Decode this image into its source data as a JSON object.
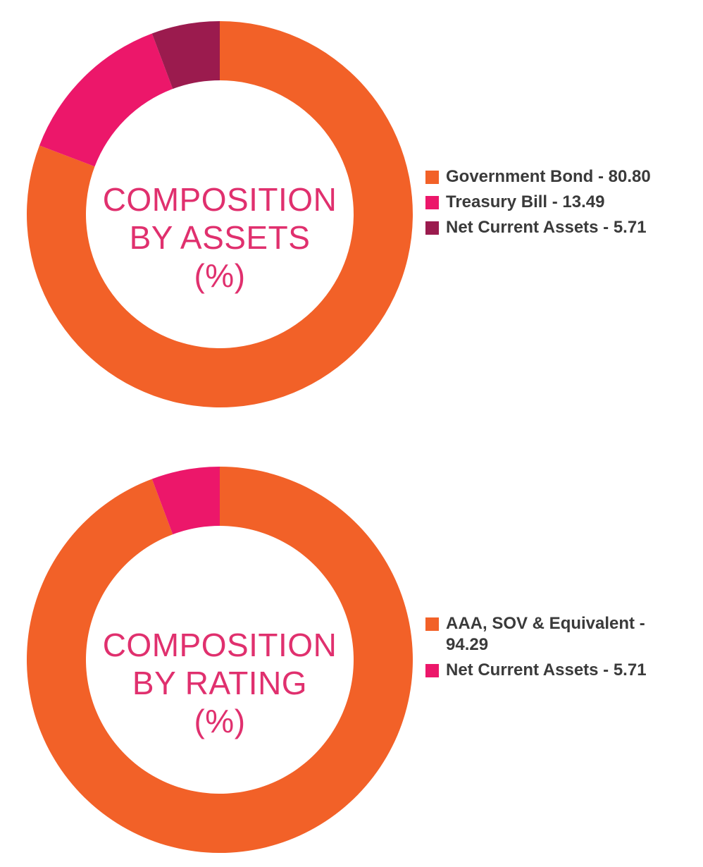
{
  "chart_data": [
    {
      "type": "pie",
      "variant": "donut",
      "center_title": [
        "COMPOSITION",
        "BY ASSETS",
        "(%)"
      ],
      "series": [
        {
          "name": "Government Bond",
          "value": 80.8,
          "color": "#f26128"
        },
        {
          "name": "Treasury Bill",
          "value": 13.49,
          "color": "#ec176a"
        },
        {
          "name": "Net Current Assets",
          "value": 5.71,
          "color": "#9b1b4e"
        }
      ],
      "legend": [
        "Government Bond - 80.80",
        "Treasury Bill - 13.49",
        "Net Current Assets - 5.71"
      ],
      "legend_position": "right"
    },
    {
      "type": "pie",
      "variant": "donut",
      "center_title": [
        "COMPOSITION",
        "BY RATING",
        "(%)"
      ],
      "series": [
        {
          "name": "AAA, SOV & Equivalent",
          "value": 94.29,
          "color": "#f26128"
        },
        {
          "name": "Net Current Assets",
          "value": 5.71,
          "color": "#ec176a"
        }
      ],
      "legend": [
        "AAA, SOV & Equivalent - 94.29",
        "Net Current Assets - 5.71"
      ],
      "legend_position": "right"
    }
  ]
}
